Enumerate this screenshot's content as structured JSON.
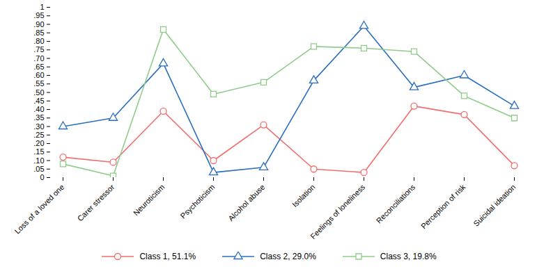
{
  "chart_data": {
    "type": "line",
    "categories": [
      "Loss of a loved one",
      "Carer stressor",
      "Neuroticism",
      "Psychoticism",
      "Alcohol abuse",
      "Isolation",
      "Feelings of loneliness",
      "Reconciliations",
      "Perception of risk",
      "Suicidal ideation"
    ],
    "series": [
      {
        "name": "Class 1, 51.1%",
        "color": "#f26d6d",
        "marker": "circle",
        "values": [
          0.12,
          0.09,
          0.39,
          0.1,
          0.31,
          0.05,
          0.03,
          0.42,
          0.37,
          0.07
        ]
      },
      {
        "name": "Class 2, 29.0%",
        "color": "#2a6ebb",
        "marker": "triangle",
        "values": [
          0.3,
          0.35,
          0.67,
          0.03,
          0.06,
          0.57,
          0.89,
          0.53,
          0.6,
          0.42
        ]
      },
      {
        "name": "Class 3, 19.8%",
        "color": "#8fcc8a",
        "marker": "square",
        "values": [
          0.08,
          0.01,
          0.87,
          0.49,
          0.56,
          0.77,
          0.76,
          0.74,
          0.48,
          0.35
        ]
      }
    ],
    "ylim": [
      0,
      1
    ],
    "yticks": [
      0,
      {
        "value": 0.05,
        "label": ".05"
      },
      {
        "value": 0.1,
        "label": ".10"
      },
      {
        "value": 0.15,
        "label": ".15"
      },
      {
        "value": 0.2,
        "label": ".20"
      },
      {
        "value": 0.25,
        "label": ".25"
      },
      {
        "value": 0.3,
        "label": ".30"
      },
      {
        "value": 0.35,
        "label": ".35"
      },
      {
        "value": 0.4,
        "label": ".40"
      },
      {
        "value": 0.45,
        "label": ".45"
      },
      {
        "value": 0.5,
        "label": ".50"
      },
      {
        "value": 0.55,
        "label": ".55"
      },
      {
        "value": 0.6,
        "label": ".60"
      },
      {
        "value": 0.65,
        "label": ".65"
      },
      {
        "value": 0.7,
        "label": ".70"
      },
      {
        "value": 0.75,
        "label": ".75"
      },
      {
        "value": 0.8,
        "label": ".80"
      },
      {
        "value": 0.85,
        "label": ".85"
      },
      {
        "value": 0.9,
        "label": ".90"
      },
      {
        "value": 0.95,
        "label": ".95"
      },
      1
    ],
    "grid": false,
    "legend": "bottom"
  }
}
